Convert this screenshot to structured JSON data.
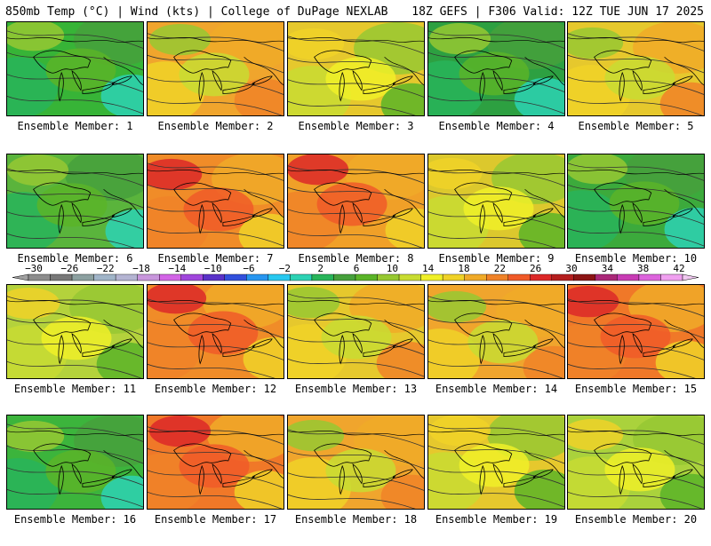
{
  "header": {
    "left": "850mb Temp (°C) | Wind (kts) | College of DuPage NEXLAB",
    "right": "18Z GEFS | F306 Valid: 12Z TUE JUN 17 2025"
  },
  "panels": [
    {
      "label": "Ensemble Member: 1",
      "base": "#37b437",
      "scheme": "cool"
    },
    {
      "label": "Ensemble Member: 2",
      "base": "#f0a52d",
      "scheme": "warm"
    },
    {
      "label": "Ensemble Member: 3",
      "base": "#e6c82d",
      "scheme": "mild"
    },
    {
      "label": "Ensemble Member: 4",
      "base": "#2da041",
      "scheme": "cool"
    },
    {
      "label": "Ensemble Member: 5",
      "base": "#e6c82d",
      "scheme": "warm"
    },
    {
      "label": "Ensemble Member: 6",
      "base": "#5ab43c",
      "scheme": "cool"
    },
    {
      "label": "Ensemble Member: 7",
      "base": "#f08c28",
      "scheme": "hot"
    },
    {
      "label": "Ensemble Member: 8",
      "base": "#f0a028",
      "scheme": "hot"
    },
    {
      "label": "Ensemble Member: 9",
      "base": "#dcc82d",
      "scheme": "mild"
    },
    {
      "label": "Ensemble Member: 10",
      "base": "#3caa3c",
      "scheme": "cool"
    },
    {
      "label": "Ensemble Member: 11",
      "base": "#b4d23c",
      "scheme": "mild"
    },
    {
      "label": "Ensemble Member: 12",
      "base": "#f08c28",
      "scheme": "hot"
    },
    {
      "label": "Ensemble Member: 13",
      "base": "#e6c82d",
      "scheme": "warm"
    },
    {
      "label": "Ensemble Member: 14",
      "base": "#f0a52d",
      "scheme": "warm"
    },
    {
      "label": "Ensemble Member: 15",
      "base": "#f07828",
      "scheme": "hot"
    },
    {
      "label": "Ensemble Member: 16",
      "base": "#3cb43c",
      "scheme": "cool"
    },
    {
      "label": "Ensemble Member: 17",
      "base": "#f07828",
      "scheme": "hot"
    },
    {
      "label": "Ensemble Member: 18",
      "base": "#f0a52d",
      "scheme": "warm"
    },
    {
      "label": "Ensemble Member: 19",
      "base": "#e6c82d",
      "scheme": "mild"
    },
    {
      "label": "Ensemble Member: 20",
      "base": "#aad23c",
      "scheme": "mild"
    }
  ],
  "colorbar": {
    "ticks": [
      "−30",
      "−26",
      "−22",
      "−18",
      "−14",
      "−10",
      "−6",
      "−2",
      "2",
      "6",
      "10",
      "14",
      "18",
      "22",
      "26",
      "30",
      "34",
      "38",
      "42"
    ],
    "colors": [
      "#8c8c8c",
      "#787878",
      "#8ca0a0",
      "#a0b4c8",
      "#b4b4d2",
      "#c896dc",
      "#d264e6",
      "#a046dc",
      "#5a32c8",
      "#3250dc",
      "#2896f0",
      "#28c8f0",
      "#2dd2b4",
      "#28b45a",
      "#46a03c",
      "#5ab428",
      "#96c832",
      "#c8dc32",
      "#f0f028",
      "#f0d228",
      "#f0aa28",
      "#f08228",
      "#f05a28",
      "#dc2828",
      "#b41e1e",
      "#8c1414",
      "#aa2878",
      "#c83cb4",
      "#dc64dc",
      "#f0a0f0"
    ]
  },
  "scheme_colors": {
    "cool": [
      "#28b45a",
      "#46a03c",
      "#5ab428",
      "#2dd2b4",
      "#96c832"
    ],
    "mild": [
      "#c8dc32",
      "#96c832",
      "#f0f028",
      "#5ab428",
      "#f0d228"
    ],
    "warm": [
      "#f0d228",
      "#f0aa28",
      "#c8dc32",
      "#f08228",
      "#96c832"
    ],
    "hot": [
      "#f08228",
      "#f0aa28",
      "#f05a28",
      "#f0d228",
      "#dc2828"
    ]
  }
}
